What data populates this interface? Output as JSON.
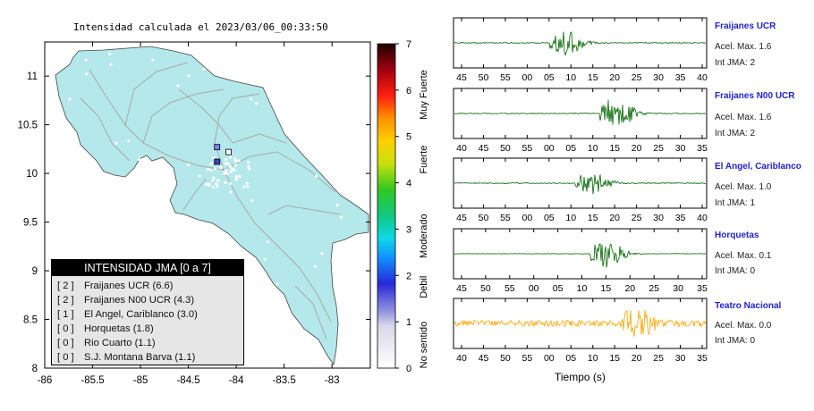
{
  "map": {
    "title": "Intensidad calculada el 2023/03/06_00:33:50",
    "lon_ticks": [
      "-86",
      "-85.5",
      "-85",
      "-84.5",
      "-84",
      "-83.5",
      "-83"
    ],
    "lat_ticks": [
      "11",
      "10.5",
      "10",
      "9.5",
      "9",
      "8.5",
      "8"
    ],
    "lon_range": [
      -86,
      -82.6
    ],
    "lat_range": [
      8,
      11.35
    ],
    "land_color": "#b4e8ea",
    "stations_highlighted": [
      {
        "lon": -84.2,
        "lat": 10.27,
        "color": "#8080ff"
      },
      {
        "lon": -84.2,
        "lat": 10.12,
        "color": "#4040c0"
      },
      {
        "lon": -84.08,
        "lat": 10.22,
        "color": "#ffffff"
      }
    ]
  },
  "colorbar": {
    "ticks": [
      "0",
      "1",
      "2",
      "3",
      "4",
      "5",
      "6",
      "7"
    ],
    "labels": [
      "No sentido",
      "Debil",
      "Moderado",
      "Fuerte",
      "Muy Fuerte"
    ]
  },
  "legend": {
    "title": "INTENSIDAD JMA [0 a 7]",
    "items": [
      {
        "level": "[ 2 ]",
        "name": "Fraijanes UCR (6.6)"
      },
      {
        "level": "[ 2 ]",
        "name": "Fraijanes N00 UCR (4.3)"
      },
      {
        "level": "[ 1 ]",
        "name": "El Angel, Cariblanco (3.0)"
      },
      {
        "level": "[ 0 ]",
        "name": "Horquetas (1.8)"
      },
      {
        "level": "[ 0 ]",
        "name": "Rio Cuarto (1.1)"
      },
      {
        "level": "[ 0 ]",
        "name": "S.J. Montana Barva (1.1)"
      }
    ]
  },
  "chart_data": [
    {
      "type": "line",
      "name": "Fraijanes UCR",
      "accel": "Acel. Max. 1.6",
      "intensity": "Int JMA: 2",
      "color": "#006400",
      "xticks": [
        "45",
        "50",
        "55",
        "00",
        "05",
        "10",
        "15",
        "20",
        "25",
        "30",
        "35",
        "40"
      ],
      "onset": 0.38,
      "peak": 0.53,
      "noise": 0.02
    },
    {
      "type": "line",
      "name": "Fraijanes N00 UCR",
      "accel": "Acel. Max. 1.6",
      "intensity": "Int JMA: 2",
      "color": "#006400",
      "xticks": [
        "40",
        "45",
        "50",
        "55",
        "00",
        "05",
        "10",
        "15",
        "20",
        "25",
        "30",
        "35"
      ],
      "onset": 0.58,
      "peak": 0.72,
      "noise": 0.02
    },
    {
      "type": "line",
      "name": "El Angel, Cariblanco",
      "accel": "Acel. Max. 1.0",
      "intensity": "Int JMA: 1",
      "color": "#006400",
      "xticks": [
        "45",
        "50",
        "55",
        "00",
        "05",
        "10",
        "15",
        "20",
        "25",
        "30",
        "35",
        "40"
      ],
      "onset": 0.48,
      "peak": 0.52,
      "noise": 0.02
    },
    {
      "type": "line",
      "name": "Horquetas",
      "accel": "Acel. Max. 0.1",
      "intensity": "Int JMA: 0",
      "color": "#006400",
      "xticks": [
        "45",
        "50",
        "55",
        "00",
        "05",
        "10",
        "15",
        "20",
        "25",
        "30",
        "35"
      ],
      "onset": 0.54,
      "peak": 0.62,
      "noise": 0.01
    },
    {
      "type": "line",
      "name": "Teatro Nacional",
      "accel": "Acel. Max. 0.0",
      "intensity": "Int JMA: 0",
      "color": "#ffa500",
      "xticks": [
        "40",
        "45",
        "50",
        "55",
        "00",
        "05",
        "10",
        "15",
        "20",
        "25",
        "30",
        "35"
      ],
      "onset": 0.66,
      "peak": 0.62,
      "noise": 0.14,
      "xlabel": "Tiempo (s)"
    }
  ]
}
